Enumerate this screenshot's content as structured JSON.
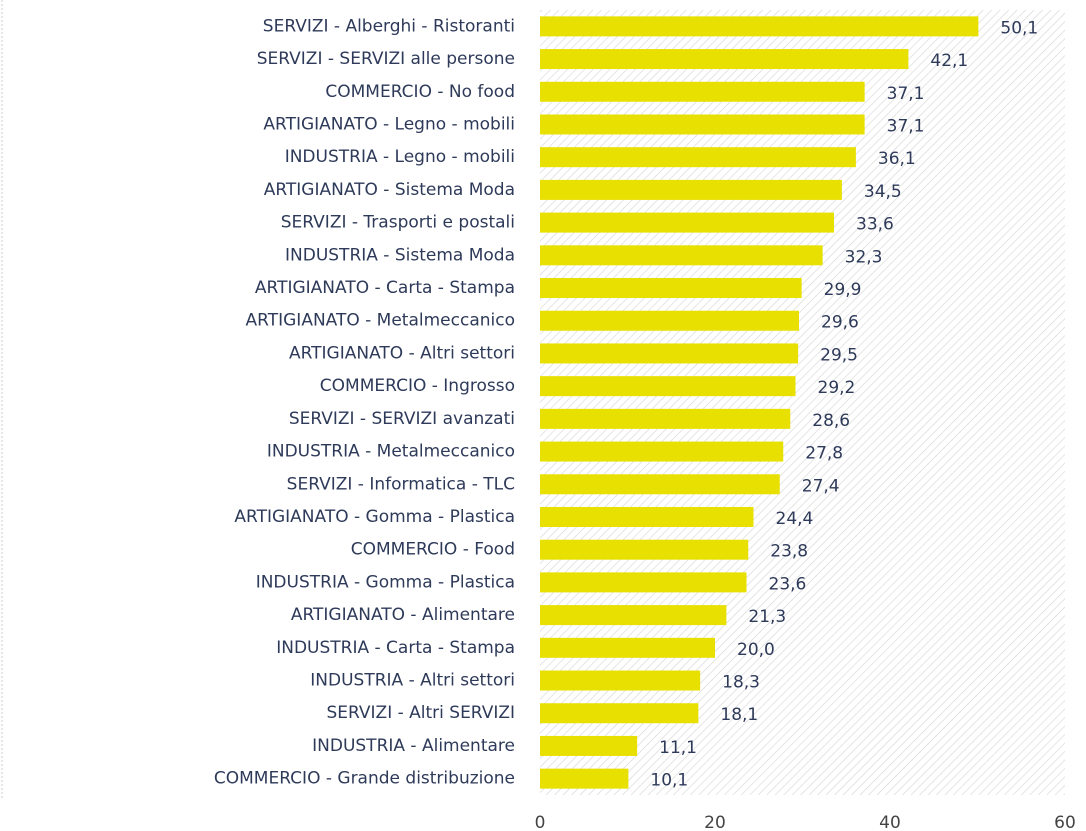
{
  "chart_data": {
    "type": "bar",
    "orientation": "horizontal",
    "categories": [
      "SERVIZI - Alberghi - Ristoranti",
      "SERVIZI - SERVIZI alle persone",
      "COMMERCIO - No food",
      "ARTIGIANATO - Legno - mobili",
      "INDUSTRIA - Legno - mobili",
      "ARTIGIANATO - Sistema Moda",
      "SERVIZI - Trasporti e postali",
      "INDUSTRIA - Sistema Moda",
      "ARTIGIANATO - Carta - Stampa",
      "ARTIGIANATO - Metalmeccanico",
      "ARTIGIANATO - Altri settori",
      "COMMERCIO - Ingrosso",
      "SERVIZI - SERVIZI avanzati",
      "INDUSTRIA - Metalmeccanico",
      "SERVIZI - Informatica - TLC",
      "ARTIGIANATO - Gomma - Plastica",
      "COMMERCIO - Food",
      "INDUSTRIA - Gomma - Plastica",
      "ARTIGIANATO - Alimentare",
      "INDUSTRIA - Carta - Stampa",
      "INDUSTRIA - Altri settori",
      "SERVIZI - Altri SERVIZI",
      "INDUSTRIA - Alimentare",
      "COMMERCIO - Grande distribuzione"
    ],
    "values": [
      50.1,
      42.1,
      37.1,
      37.1,
      36.1,
      34.5,
      33.6,
      32.3,
      29.9,
      29.6,
      29.5,
      29.2,
      28.6,
      27.8,
      27.4,
      24.4,
      23.8,
      23.6,
      21.3,
      20.0,
      18.3,
      18.1,
      11.1,
      10.1
    ],
    "value_labels": [
      "50,1",
      "42,1",
      "37,1",
      "37,1",
      "36,1",
      "34,5",
      "33,6",
      "32,3",
      "29,9",
      "29,6",
      "29,5",
      "29,2",
      "28,6",
      "27,8",
      "27,4",
      "24,4",
      "23,8",
      "23,6",
      "21,3",
      "20,0",
      "18,3",
      "18,1",
      "11,1",
      "10,1"
    ],
    "color": "#e8e000",
    "xlim": [
      0,
      60
    ],
    "xticks": [
      0,
      20,
      40,
      60
    ]
  }
}
